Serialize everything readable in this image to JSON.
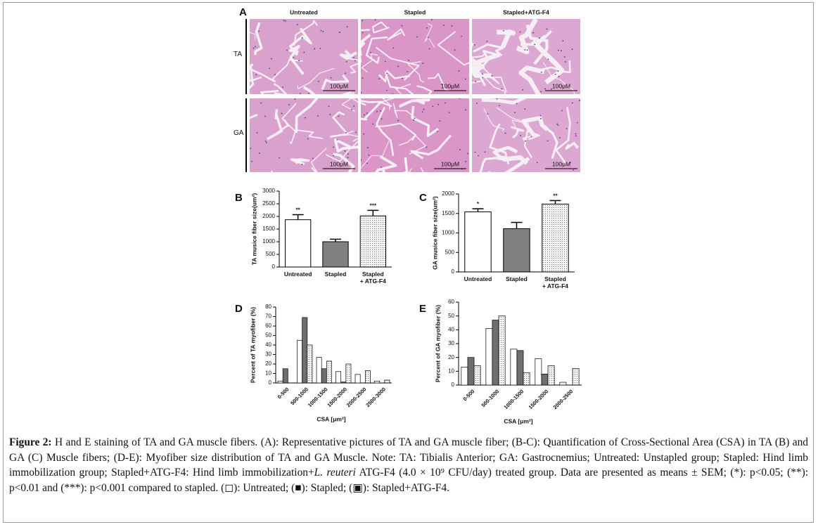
{
  "figure": {
    "panel_a": {
      "label": "A",
      "columns": [
        "Untreated",
        "Stapled",
        "Stapled+ATG-F4"
      ],
      "rows": [
        "TA",
        "GA"
      ],
      "scale_bar": "100μM"
    },
    "caption": {
      "label": "Figure 2:",
      "text": "H and E staining of TA and GA muscle fibers. (A): Representative pictures of TA and GA muscle fiber; (B-C): Quantification of Cross-Sectional Area (CSA) in TA (B) and GA (C) Muscle fibers; (D-E): Myofiber size distribution of TA and GA Muscle. Note: TA: Tibialis Anterior; GA: Gastrocnemius; Untreated: Unstapled group; Stapled: Hind limb immobilization group; Stapled+ATG-F4: Hind limb immobilization+",
      "species": "L. reuteri",
      "text_end": "ATG-F4 (4.0 × 10⁹ CFU/day) treated group. Data are presented as means ± SEM; (*): p<0.05; (**): p<0.01 and (***): p<0.001 compared to stapled. (◻): Untreated; (■): Stapled; (▣): Stapled+ATG-F4."
    }
  },
  "chart_data": [
    {
      "type": "bar",
      "panel": "B",
      "y_label": "TA musice fiber size(um²)",
      "categories": [
        "Untreated",
        "Stapled",
        "Stapled\n+ ATG-F4"
      ],
      "values": [
        1870,
        1000,
        2020
      ],
      "errors": [
        200,
        100,
        220
      ],
      "annotations": [
        "**",
        null,
        "***"
      ],
      "colors": [
        "#ffffff",
        "#808080",
        "#f2f2f2"
      ],
      "dotted": [
        false,
        false,
        true
      ],
      "ylim": [
        0,
        3000
      ],
      "yticks": [
        0,
        500,
        1000,
        1500,
        2000,
        2500,
        3000
      ]
    },
    {
      "type": "bar",
      "panel": "C",
      "y_label": "GA musice fiber size(um²)",
      "categories": [
        "Untreated",
        "Stapled",
        "Stapled\n+ ATG-F4"
      ],
      "values": [
        1540,
        1110,
        1740
      ],
      "errors": [
        80,
        160,
        90
      ],
      "annotations": [
        "*",
        null,
        "**"
      ],
      "colors": [
        "#ffffff",
        "#808080",
        "#f2f2f2"
      ],
      "dotted": [
        false,
        false,
        true
      ],
      "ylim": [
        0,
        2000
      ],
      "yticks": [
        0,
        500,
        1000,
        1500,
        2000
      ]
    },
    {
      "type": "grouped_bar",
      "panel": "D",
      "y_label": "Percent of TA myofiber (%)",
      "x_label": "CSA [μm²]",
      "categories": [
        "0-500",
        "500-1000",
        "1000-1500",
        "1500-2000",
        "2000-2500",
        "2500-3000"
      ],
      "series": [
        {
          "color": "#ffffff",
          "dotted": false,
          "values": [
            2,
            45,
            27,
            12,
            9,
            2
          ]
        },
        {
          "color": "#6e6e6e",
          "dotted": false,
          "values": [
            15,
            69,
            15,
            1,
            0,
            0
          ]
        },
        {
          "color": "#e6e6e6",
          "dotted": true,
          "values": [
            0,
            40,
            23,
            20,
            13,
            3
          ]
        }
      ],
      "ylim": [
        0,
        80
      ],
      "yticks": [
        0,
        10,
        20,
        30,
        40,
        50,
        60,
        70,
        80
      ]
    },
    {
      "type": "grouped_bar",
      "panel": "E",
      "y_label": "Percent of GA myofiber (%)",
      "x_label": "CSA [μm²]",
      "categories": [
        "0-500",
        "500-1000",
        "1000-1500",
        "1500-2000",
        "2000-2500"
      ],
      "series": [
        {
          "color": "#ffffff",
          "dotted": false,
          "values": [
            13,
            41,
            26,
            19,
            2
          ]
        },
        {
          "color": "#6e6e6e",
          "dotted": false,
          "values": [
            20,
            47,
            25,
            8,
            0
          ]
        },
        {
          "color": "#e6e6e6",
          "dotted": true,
          "values": [
            14,
            50,
            9,
            14,
            12
          ]
        }
      ],
      "ylim": [
        0,
        60
      ],
      "yticks": [
        0,
        10,
        20,
        30,
        40,
        50,
        60
      ]
    }
  ]
}
